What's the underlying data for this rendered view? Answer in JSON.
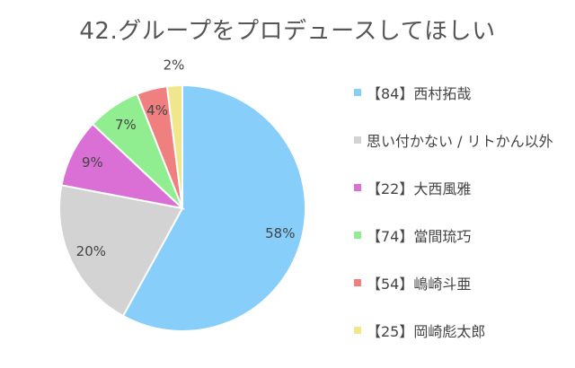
{
  "chart_data": {
    "type": "pie",
    "title": "42.グループをプロデュースしてほしい",
    "slices": [
      {
        "label": "【84】西村拓哉",
        "value": 58,
        "display": "58%",
        "color": "#87cefa"
      },
      {
        "label": "思い付かない / リトかん以外",
        "value": 20,
        "display": "20%",
        "color": "#d3d3d3"
      },
      {
        "label": "【22】大西風雅",
        "value": 9,
        "display": "9%",
        "color": "#da70d6"
      },
      {
        "label": "【74】當間琉巧",
        "value": 7,
        "display": "7%",
        "color": "#90ee90"
      },
      {
        "label": "【54】嶋崎斗亜",
        "value": 4,
        "display": "4%",
        "color": "#f08080"
      },
      {
        "label": "【25】岡崎彪太郎",
        "value": 2,
        "display": "2%",
        "color": "#f0e68c"
      }
    ],
    "legend_position": "right"
  }
}
